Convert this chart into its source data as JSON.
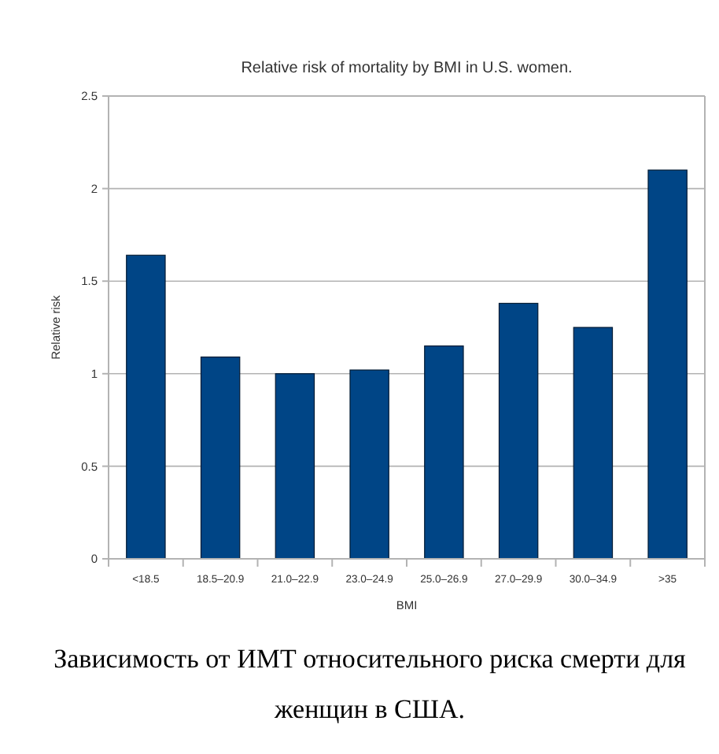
{
  "chart_data": {
    "type": "bar",
    "title": "Relative risk of mortality by BMI in U.S. women.",
    "xlabel": "BMI",
    "ylabel": "Relative risk",
    "categories": [
      "<18.5",
      "18.5–20.9",
      "21.0–22.9",
      "23.0–24.9",
      "25.0–26.9",
      "27.0–29.9",
      "30.0–34.9",
      ">35"
    ],
    "values": [
      1.64,
      1.09,
      1.0,
      1.02,
      1.15,
      1.38,
      1.25,
      2.1
    ],
    "color": "#004586",
    "ylim": [
      0,
      2.5
    ],
    "yticks": [
      {
        "value": 0,
        "label": "0"
      },
      0.5,
      {
        "value": 1,
        "label": "1"
      },
      1.5,
      {
        "value": 2,
        "label": "2"
      },
      2.5
    ],
    "grid": "y",
    "annotations": [
      "Зависимость от ИМТ относительного риска смерти для женщин в США."
    ]
  }
}
